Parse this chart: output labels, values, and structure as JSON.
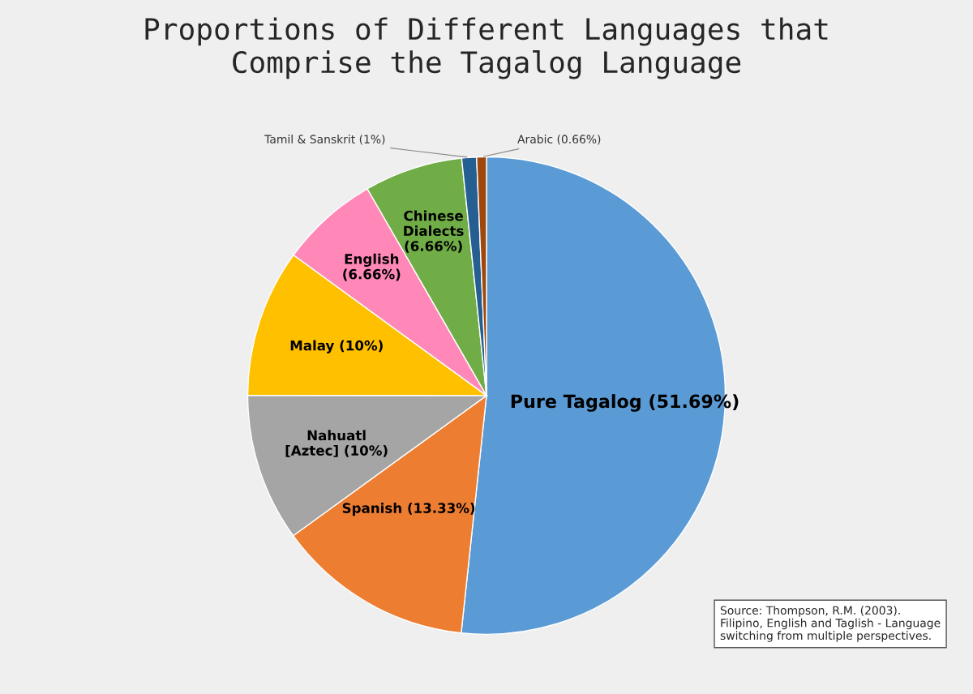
{
  "chart_data": {
    "type": "pie",
    "title": "Proportions of Different Languages that\nComprise the Tagalog Language",
    "categories": [
      "Pure Tagalog (51.69%)",
      "Spanish (13.33%)",
      "Nahuatl\n[Aztec] (10%)",
      "Malay (10%)",
      "English\n(6.66%)",
      "Chinese\nDialects\n(6.66%)",
      "Tamil & Sanskrit (1%)",
      "Arabic (0.66%)"
    ],
    "values": [
      51.69,
      13.33,
      10,
      10,
      6.66,
      6.66,
      1,
      0.66
    ],
    "colors": [
      "#5b9bd5",
      "#ed7d31",
      "#a5a5a5",
      "#ffc000",
      "#ff88b8",
      "#70ad47",
      "#255e91",
      "#9e480e"
    ],
    "legend": false,
    "annotations": [
      "Source: Thompson, R.M. (2003).\nFilipino, English and Taglish - Language\nswitching from multiple perspectives."
    ]
  }
}
